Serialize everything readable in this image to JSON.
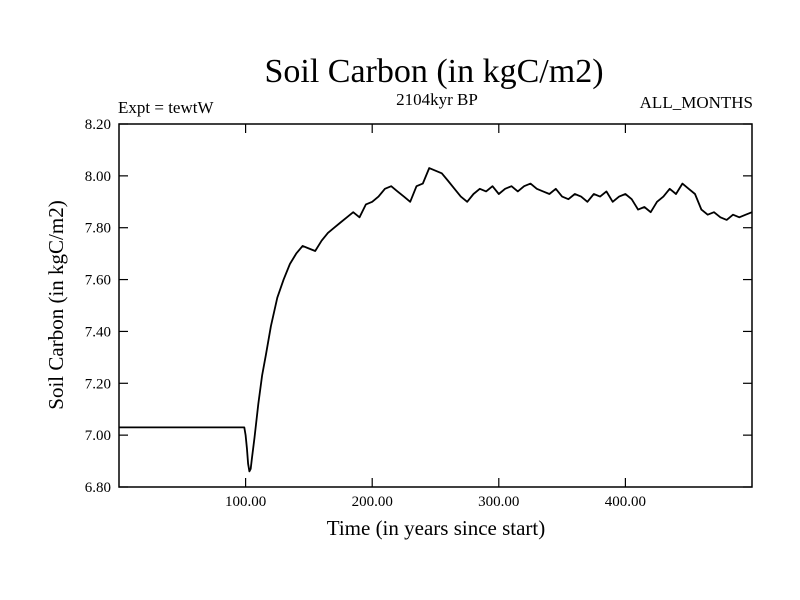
{
  "chart_data": {
    "type": "line",
    "title": "Soil Carbon (in kgC/m2)",
    "subtitle_left": "Expt = tewtW",
    "subtitle_center": "2104kyr BP",
    "subtitle_right": "ALL_MONTHS",
    "xlabel": "Time (in years since start)",
    "ylabel": "Soil Carbon (in kgC/m2)",
    "xlim": [
      0,
      500
    ],
    "ylim": [
      6.8,
      8.2
    ],
    "xticks": [
      100,
      200,
      300,
      400
    ],
    "xtick_labels": [
      "100.00",
      "200.00",
      "300.00",
      "400.00"
    ],
    "yticks": [
      6.8,
      7.0,
      7.2,
      7.4,
      7.6,
      7.8,
      8.0,
      8.2
    ],
    "ytick_labels": [
      "6.80",
      "7.00",
      "7.20",
      "7.40",
      "7.60",
      "7.80",
      "8.00",
      "8.20"
    ],
    "grid": false,
    "series": [
      {
        "name": "Soil Carbon",
        "color": "#000000",
        "x": [
          0,
          50,
          99,
          100,
          101,
          102,
          103,
          104,
          105,
          107,
          110,
          113,
          116,
          120,
          125,
          130,
          135,
          140,
          145,
          150,
          155,
          160,
          165,
          170,
          175,
          180,
          185,
          190,
          195,
          200,
          205,
          210,
          215,
          220,
          225,
          230,
          235,
          240,
          245,
          250,
          255,
          260,
          265,
          270,
          275,
          280,
          285,
          290,
          295,
          300,
          305,
          310,
          315,
          320,
          325,
          330,
          335,
          340,
          345,
          350,
          355,
          360,
          365,
          370,
          375,
          380,
          385,
          390,
          395,
          400,
          405,
          410,
          415,
          420,
          425,
          430,
          435,
          440,
          445,
          450,
          455,
          460,
          465,
          470,
          475,
          480,
          485,
          490,
          495,
          500
        ],
        "y": [
          7.03,
          7.03,
          7.03,
          7.0,
          6.95,
          6.89,
          6.86,
          6.87,
          6.91,
          6.99,
          7.12,
          7.23,
          7.31,
          7.42,
          7.53,
          7.6,
          7.66,
          7.7,
          7.73,
          7.72,
          7.71,
          7.75,
          7.78,
          7.8,
          7.82,
          7.84,
          7.86,
          7.84,
          7.89,
          7.9,
          7.92,
          7.95,
          7.96,
          7.94,
          7.92,
          7.9,
          7.96,
          7.97,
          8.03,
          8.02,
          8.01,
          7.98,
          7.95,
          7.92,
          7.9,
          7.93,
          7.95,
          7.94,
          7.96,
          7.93,
          7.95,
          7.96,
          7.94,
          7.96,
          7.97,
          7.95,
          7.94,
          7.93,
          7.95,
          7.92,
          7.91,
          7.93,
          7.92,
          7.9,
          7.93,
          7.92,
          7.94,
          7.9,
          7.92,
          7.93,
          7.91,
          7.87,
          7.88,
          7.86,
          7.9,
          7.92,
          7.95,
          7.93,
          7.97,
          7.95,
          7.93,
          7.87,
          7.85,
          7.86,
          7.84,
          7.83,
          7.85,
          7.84,
          7.85,
          7.86
        ]
      }
    ]
  }
}
